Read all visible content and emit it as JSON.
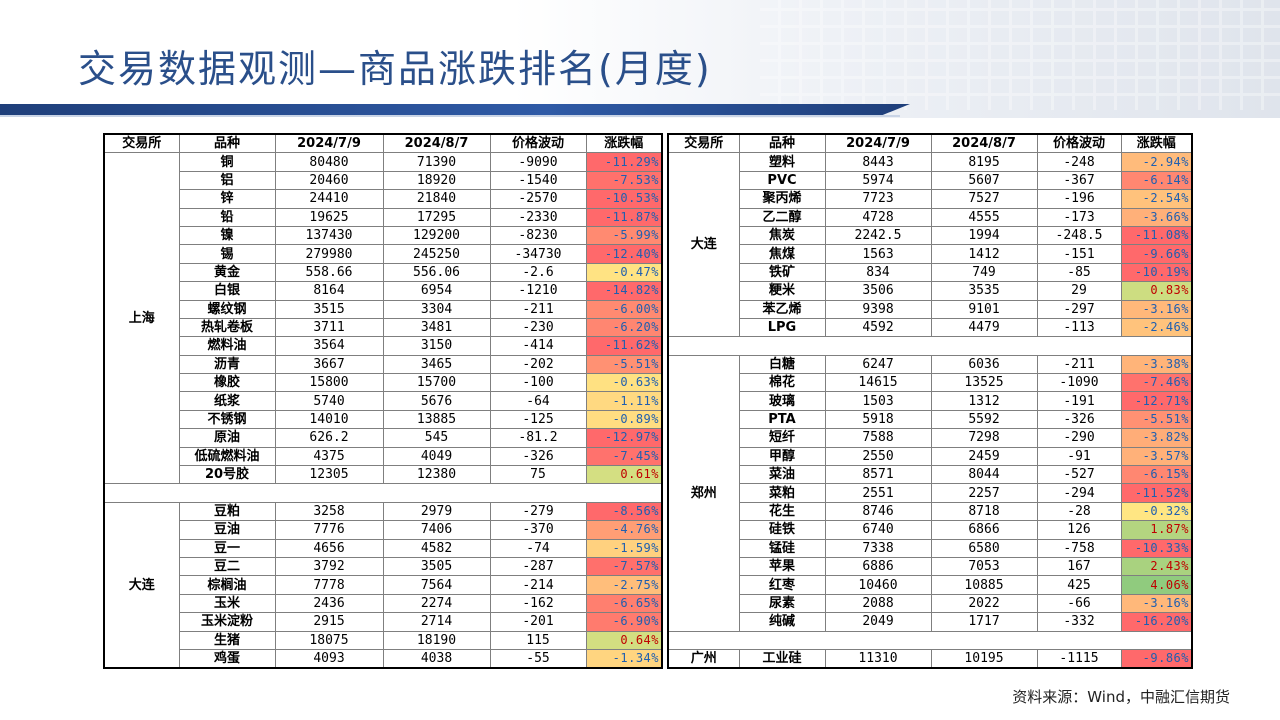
{
  "title": "交易数据观测—商品涨跌排名(月度)",
  "source": "资料来源：Wind，中融汇信期货",
  "headers": [
    "交易所",
    "品种",
    "2024/7/9",
    "2024/8/7",
    "价格波动",
    "涨跌幅"
  ],
  "left_groups": [
    {
      "exchange": "上海",
      "rows": [
        [
          "铜",
          "80480",
          "71390",
          "-9090",
          "-11.29%"
        ],
        [
          "铝",
          "20460",
          "18920",
          "-1540",
          "-7.53%"
        ],
        [
          "锌",
          "24410",
          "21840",
          "-2570",
          "-10.53%"
        ],
        [
          "铅",
          "19625",
          "17295",
          "-2330",
          "-11.87%"
        ],
        [
          "镍",
          "137430",
          "129200",
          "-8230",
          "-5.99%"
        ],
        [
          "锡",
          "279980",
          "245250",
          "-34730",
          "-12.40%"
        ],
        [
          "黄金",
          "558.66",
          "556.06",
          "-2.6",
          "-0.47%"
        ],
        [
          "白银",
          "8164",
          "6954",
          "-1210",
          "-14.82%"
        ],
        [
          "螺纹钢",
          "3515",
          "3304",
          "-211",
          "-6.00%"
        ],
        [
          "热轧卷板",
          "3711",
          "3481",
          "-230",
          "-6.20%"
        ],
        [
          "燃料油",
          "3564",
          "3150",
          "-414",
          "-11.62%"
        ],
        [
          "沥青",
          "3667",
          "3465",
          "-202",
          "-5.51%"
        ],
        [
          "橡胶",
          "15800",
          "15700",
          "-100",
          "-0.63%"
        ],
        [
          "纸浆",
          "5740",
          "5676",
          "-64",
          "-1.11%"
        ],
        [
          "不锈钢",
          "14010",
          "13885",
          "-125",
          "-0.89%"
        ],
        [
          "原油",
          "626.2",
          "545",
          "-81.2",
          "-12.97%"
        ],
        [
          "低硫燃料油",
          "4375",
          "4049",
          "-326",
          "-7.45%"
        ],
        [
          "20号胶",
          "12305",
          "12380",
          "75",
          "0.61%"
        ]
      ]
    },
    {
      "exchange": "大连",
      "rows": [
        [
          "豆粕",
          "3258",
          "2979",
          "-279",
          "-8.56%"
        ],
        [
          "豆油",
          "7776",
          "7406",
          "-370",
          "-4.76%"
        ],
        [
          "豆一",
          "4656",
          "4582",
          "-74",
          "-1.59%"
        ],
        [
          "豆二",
          "3792",
          "3505",
          "-287",
          "-7.57%"
        ],
        [
          "棕榈油",
          "7778",
          "7564",
          "-214",
          "-2.75%"
        ],
        [
          "玉米",
          "2436",
          "2274",
          "-162",
          "-6.65%"
        ],
        [
          "玉米淀粉",
          "2915",
          "2714",
          "-201",
          "-6.90%"
        ],
        [
          "生猪",
          "18075",
          "18190",
          "115",
          "0.64%"
        ],
        [
          "鸡蛋",
          "4093",
          "4038",
          "-55",
          "-1.34%"
        ]
      ]
    }
  ],
  "right_groups": [
    {
      "exchange": "大连",
      "rows": [
        [
          "塑料",
          "8443",
          "8195",
          "-248",
          "-2.94%"
        ],
        [
          "PVC",
          "5974",
          "5607",
          "-367",
          "-6.14%"
        ],
        [
          "聚丙烯",
          "7723",
          "7527",
          "-196",
          "-2.54%"
        ],
        [
          "乙二醇",
          "4728",
          "4555",
          "-173",
          "-3.66%"
        ],
        [
          "焦炭",
          "2242.5",
          "1994",
          "-248.5",
          "-11.08%"
        ],
        [
          "焦煤",
          "1563",
          "1412",
          "-151",
          "-9.66%"
        ],
        [
          "铁矿",
          "834",
          "749",
          "-85",
          "-10.19%"
        ],
        [
          "粳米",
          "3506",
          "3535",
          "29",
          "0.83%"
        ],
        [
          "苯乙烯",
          "9398",
          "9101",
          "-297",
          "-3.16%"
        ],
        [
          "LPG",
          "4592",
          "4479",
          "-113",
          "-2.46%"
        ]
      ]
    },
    {
      "exchange": "郑州",
      "rows": [
        [
          "白糖",
          "6247",
          "6036",
          "-211",
          "-3.38%"
        ],
        [
          "棉花",
          "14615",
          "13525",
          "-1090",
          "-7.46%"
        ],
        [
          "玻璃",
          "1503",
          "1312",
          "-191",
          "-12.71%"
        ],
        [
          "PTA",
          "5918",
          "5592",
          "-326",
          "-5.51%"
        ],
        [
          "短纤",
          "7588",
          "7298",
          "-290",
          "-3.82%"
        ],
        [
          "甲醇",
          "2550",
          "2459",
          "-91",
          "-3.57%"
        ],
        [
          "菜油",
          "8571",
          "8044",
          "-527",
          "-6.15%"
        ],
        [
          "菜粕",
          "2551",
          "2257",
          "-294",
          "-11.52%"
        ],
        [
          "花生",
          "8746",
          "8718",
          "-28",
          "-0.32%"
        ],
        [
          "硅铁",
          "6740",
          "6866",
          "126",
          "1.87%"
        ],
        [
          "锰硅",
          "7338",
          "6580",
          "-758",
          "-10.33%"
        ],
        [
          "苹果",
          "6886",
          "7053",
          "167",
          "2.43%"
        ],
        [
          "红枣",
          "10460",
          "10885",
          "425",
          "4.06%"
        ],
        [
          "尿素",
          "2088",
          "2022",
          "-66",
          "-3.16%"
        ],
        [
          "纯碱",
          "2049",
          "1717",
          "-332",
          "-16.20%"
        ]
      ]
    },
    {
      "exchange": "广州",
      "rows": [
        [
          "工业硅",
          "11310",
          "10195",
          "-1115",
          "-9.86%"
        ]
      ]
    }
  ]
}
